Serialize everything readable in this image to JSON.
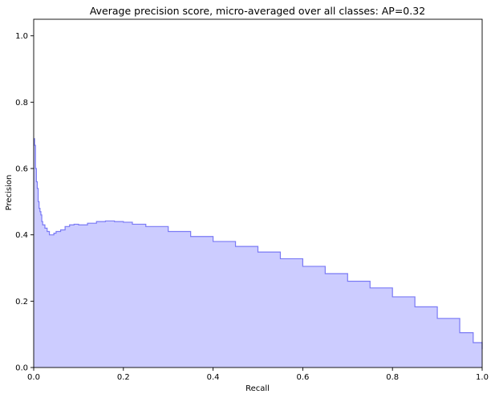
{
  "chart_data": {
    "type": "area",
    "title": "Average precision score, micro-averaged over all classes: AP=0.32",
    "xlabel": "Recall",
    "ylabel": "Precision",
    "xlim": [
      0.0,
      1.0
    ],
    "ylim": [
      0.0,
      1.05
    ],
    "xticks": [
      "0.0",
      "0.2",
      "0.4",
      "0.6",
      "0.8",
      "1.0"
    ],
    "yticks": [
      "0.0",
      "0.2",
      "0.4",
      "0.6",
      "0.8",
      "1.0"
    ],
    "grid": false,
    "legend": "none",
    "fill_color": "#ccccff",
    "line_color": "#7a7af5",
    "series": [
      {
        "x": [
          0.0,
          0.002,
          0.004,
          0.006,
          0.008,
          0.01,
          0.012,
          0.014,
          0.016,
          0.018,
          0.02,
          0.025,
          0.03,
          0.035,
          0.04,
          0.045,
          0.05,
          0.06,
          0.07,
          0.08,
          0.09,
          0.1,
          0.12,
          0.14,
          0.16,
          0.18,
          0.2,
          0.22,
          0.25,
          0.3,
          0.35,
          0.4,
          0.45,
          0.5,
          0.55,
          0.6,
          0.65,
          0.7,
          0.75,
          0.8,
          0.85,
          0.9,
          0.95,
          0.98,
          1.0
        ],
        "y": [
          0.69,
          0.67,
          0.6,
          0.56,
          0.54,
          0.5,
          0.48,
          0.47,
          0.46,
          0.44,
          0.43,
          0.42,
          0.41,
          0.4,
          0.4,
          0.405,
          0.41,
          0.415,
          0.425,
          0.43,
          0.432,
          0.43,
          0.435,
          0.44,
          0.442,
          0.44,
          0.438,
          0.432,
          0.425,
          0.41,
          0.395,
          0.38,
          0.365,
          0.348,
          0.328,
          0.305,
          0.283,
          0.26,
          0.24,
          0.213,
          0.183,
          0.148,
          0.105,
          0.075,
          0.055
        ]
      }
    ]
  }
}
